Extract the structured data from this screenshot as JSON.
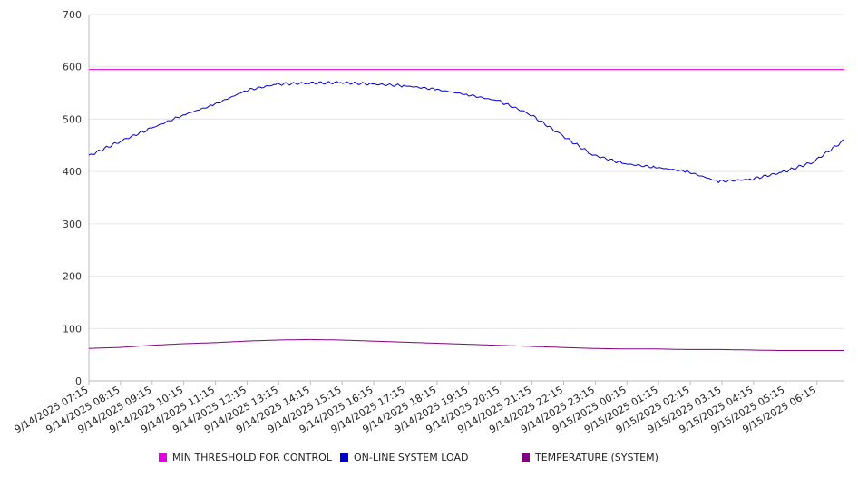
{
  "chart_data": {
    "type": "line",
    "ylim": [
      0,
      700
    ],
    "y_ticks": [
      "0",
      "100",
      "200",
      "300",
      "400",
      "500",
      "600",
      "700"
    ],
    "x_tick_labels": [
      "9/14/2025 07:15",
      "9/14/2025 08:15",
      "9/14/2025 09:15",
      "9/14/2025 10:15",
      "9/14/2025 11:15",
      "9/14/2025 12:15",
      "9/14/2025 13:15",
      "9/14/2025 14:15",
      "9/14/2025 15:15",
      "9/14/2025 16:15",
      "9/14/2025 17:15",
      "9/14/2025 18:15",
      "9/14/2025 19:15",
      "9/14/2025 20:15",
      "9/14/2025 21:15",
      "9/14/2025 22:15",
      "9/14/2025 23:15",
      "9/15/2025 00:15",
      "9/15/2025 01:15",
      "9/15/2025 02:15",
      "9/15/2025 03:15",
      "9/15/2025 04:15",
      "9/15/2025 05:15",
      "9/15/2025 06:15"
    ],
    "grid": "horizontal",
    "legend_position": "bottom",
    "series": [
      {
        "name": "MIN THRESHOLD FOR CONTROL",
        "color": "#e000e0",
        "values": [
          595,
          595,
          595,
          595,
          595,
          595,
          595,
          595,
          595,
          595,
          595,
          595,
          595,
          595,
          595,
          595,
          595,
          595,
          595,
          595,
          595,
          595,
          595,
          595,
          595
        ]
      },
      {
        "name": "ON-LINE SYSTEM LOAD",
        "color": "#0000cc",
        "values": [
          430,
          458,
          483,
          508,
          528,
          555,
          567,
          569,
          570,
          567,
          564,
          557,
          547,
          535,
          510,
          470,
          432,
          415,
          408,
          400,
          381,
          385,
          398,
          418,
          460
        ]
      },
      {
        "name": "TEMPERATURE (SYSTEM)",
        "color": "#800080",
        "values": [
          62,
          64,
          68,
          71,
          73,
          76,
          78,
          79,
          78,
          76,
          74,
          72,
          70,
          68,
          66,
          64,
          62,
          61,
          61,
          60,
          60,
          59,
          58,
          58,
          58
        ]
      }
    ]
  }
}
